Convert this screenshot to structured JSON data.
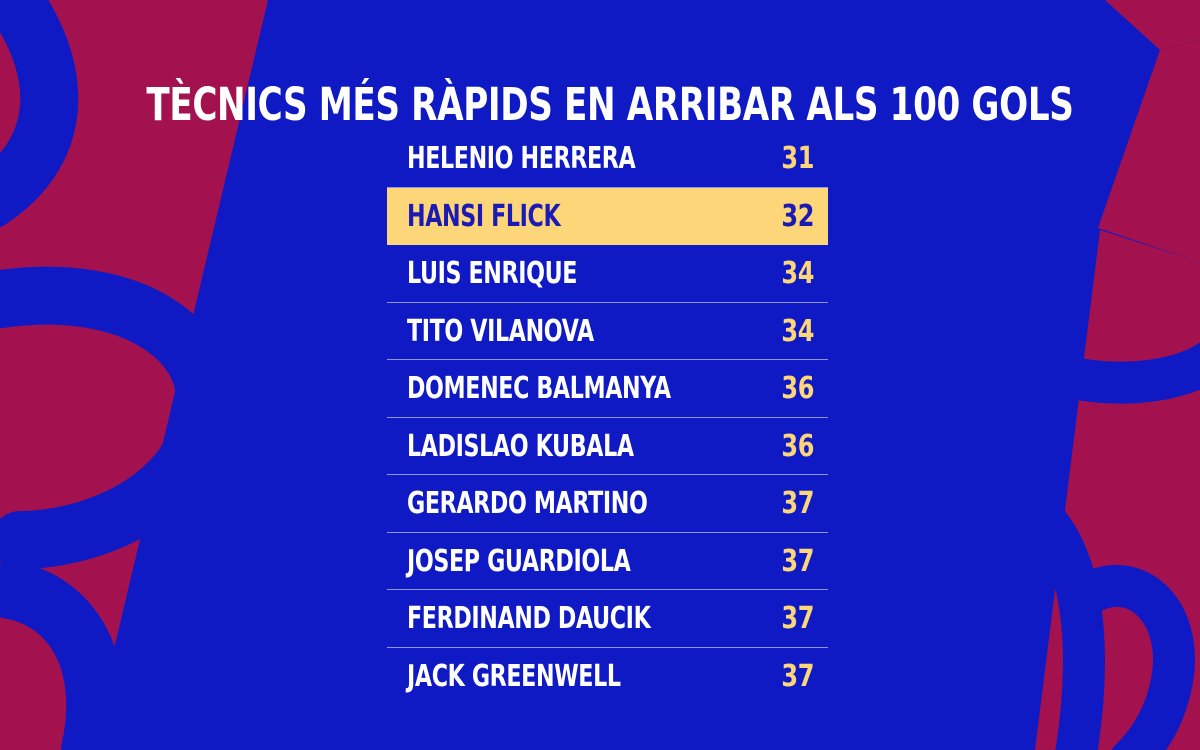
{
  "header": {
    "title": "TÈCNICS MÉS RÀPIDS EN ARRIBAR ALS 100 GOLS"
  },
  "ranking": {
    "highlighted_index": 1,
    "rows": [
      {
        "name": "HELENIO HERRERA",
        "value": "31"
      },
      {
        "name": "HANSI FLICK",
        "value": "32"
      },
      {
        "name": "LUIS ENRIQUE",
        "value": "34"
      },
      {
        "name": "TITO VILANOVA",
        "value": "34"
      },
      {
        "name": "DOMENEC BALMANYA",
        "value": "36"
      },
      {
        "name": "LADISLAO KUBALA",
        "value": "36"
      },
      {
        "name": "GERARDO MARTINO",
        "value": "37"
      },
      {
        "name": "JOSEP GUARDIOLA",
        "value": "37"
      },
      {
        "name": "FERDINAND DAUCIK",
        "value": "37"
      },
      {
        "name": "JACK GREENWELL",
        "value": "37"
      }
    ]
  },
  "colors": {
    "background_blue": "#0f1ac4",
    "accent_red": "#a3124f",
    "highlight_yellow": "#fdd67a",
    "highlight_text": "#1c1ab4",
    "text_white": "#ffffff"
  }
}
